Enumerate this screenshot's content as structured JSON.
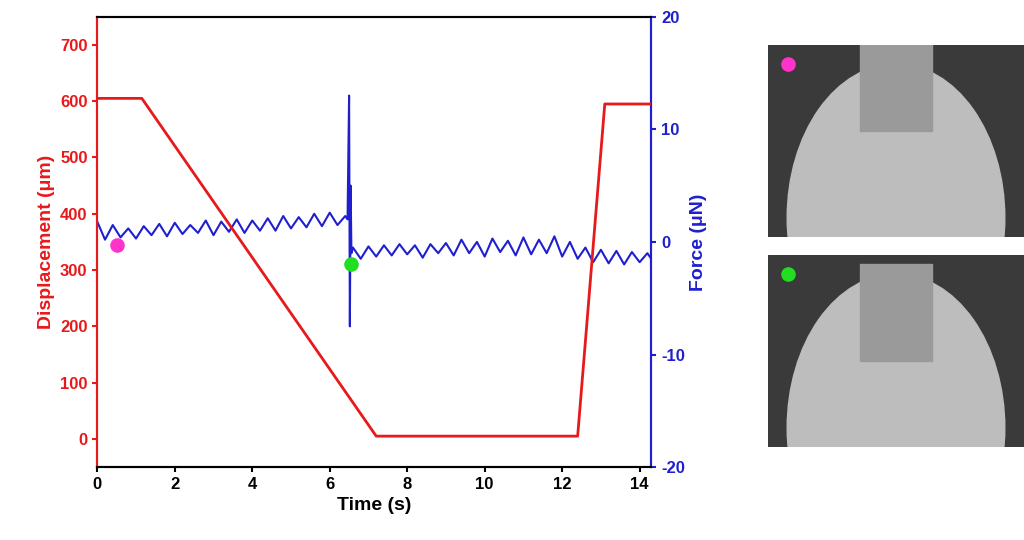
{
  "chart_data": {
    "type": "line",
    "x_label": "Time (s)",
    "y_label": "Displacement (μm)",
    "y2_label": "Force (μN)",
    "xlim": [
      0,
      14.3
    ],
    "xticks": [
      0,
      2,
      4,
      6,
      8,
      10,
      12,
      14
    ],
    "ylim": [
      -50,
      750
    ],
    "yticks": [
      0,
      100,
      200,
      300,
      400,
      500,
      600,
      700
    ],
    "y2lim": [
      -20,
      20
    ],
    "y2ticks": [
      -20,
      -10,
      0,
      10,
      20
    ],
    "series": [
      {
        "type": "line",
        "color": "#e8191b",
        "axis": "y",
        "x": [
          0,
          1.15,
          7.2,
          12.4,
          13.1,
          14.3
        ],
        "values": [
          605,
          605,
          5,
          5,
          595,
          595
        ]
      },
      {
        "type": "line",
        "color": "#1f1fd0",
        "axis": "y2",
        "x": [
          0,
          0.2,
          0.4,
          0.6,
          0.8,
          1,
          1.2,
          1.4,
          1.6,
          1.8,
          2,
          2.2,
          2.4,
          2.6,
          2.8,
          3,
          3.2,
          3.4,
          3.6,
          3.8,
          4,
          4.2,
          4.4,
          4.6,
          4.8,
          5,
          5.2,
          5.4,
          5.6,
          5.8,
          6,
          6.2,
          6.4,
          6.46,
          6.5,
          6.52,
          6.54,
          6.56,
          6.6,
          6.8,
          7,
          7.2,
          7.4,
          7.6,
          7.8,
          8,
          8.2,
          8.4,
          8.6,
          8.8,
          9,
          9.2,
          9.4,
          9.6,
          9.8,
          10,
          10.2,
          10.4,
          10.6,
          10.8,
          11,
          11.2,
          11.4,
          11.6,
          11.8,
          12,
          12.2,
          12.4,
          12.6,
          12.8,
          13,
          13.2,
          13.4,
          13.6,
          13.8,
          14,
          14.2,
          14.3
        ],
        "values": [
          1.8,
          0.2,
          1.5,
          0.4,
          1.2,
          0.3,
          1.4,
          0.6,
          1.6,
          0.5,
          1.7,
          0.7,
          1.5,
          0.8,
          1.9,
          0.6,
          1.8,
          0.9,
          2.0,
          0.8,
          1.9,
          1.0,
          2.1,
          1.0,
          2.3,
          1.2,
          2.2,
          1.3,
          2.5,
          1.4,
          2.6,
          1.5,
          2.3,
          2.0,
          13.0,
          -7.5,
          5.0,
          -1.0,
          -0.5,
          -1.5,
          -0.4,
          -1.3,
          -0.3,
          -1.2,
          -0.2,
          -1.1,
          -0.3,
          -1.4,
          -0.2,
          -1.0,
          -0.1,
          -1.2,
          0.2,
          -1.0,
          0.0,
          -1.3,
          0.3,
          -0.9,
          0.1,
          -1.2,
          0.4,
          -1.1,
          0.2,
          -1.0,
          0.5,
          -1.3,
          0.0,
          -1.5,
          -0.5,
          -1.8,
          -0.7,
          -1.9,
          -0.8,
          -2.0,
          -0.9,
          -1.8,
          -1.0,
          -1.5
        ]
      },
      {
        "type": "scatter",
        "marker": "o",
        "color": "#ff33cc",
        "axis": "y",
        "x": [
          0.5
        ],
        "values": [
          345
        ]
      },
      {
        "type": "scatter",
        "marker": "o",
        "color": "#22dd22",
        "axis": "y",
        "x": [
          6.55
        ],
        "values": [
          310
        ]
      }
    ]
  }
}
